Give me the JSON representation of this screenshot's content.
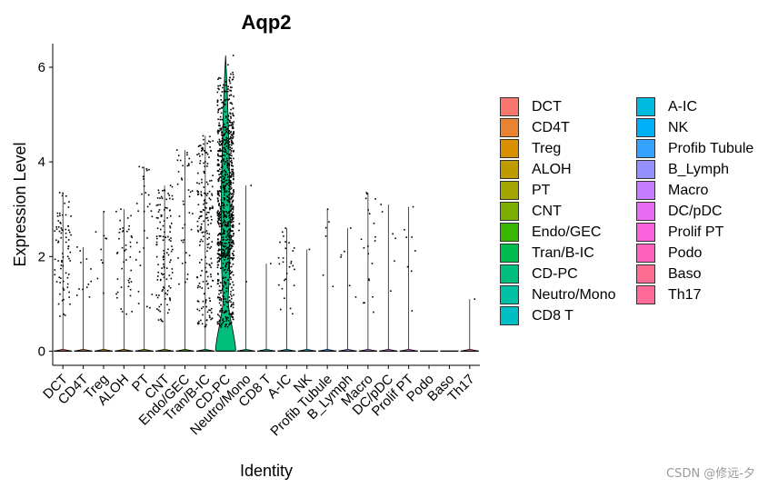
{
  "chart_data": {
    "type": "violin",
    "title": "Aqp2",
    "xlabel": "Identity",
    "ylabel": "Expression Level",
    "ylim": [
      -0.3,
      6.5
    ],
    "yticks": [
      0,
      2,
      4,
      6
    ],
    "categories": [
      "DCT",
      "CD4T",
      "Treg",
      "ALOH",
      "PT",
      "CNT",
      "Endo/GEC",
      "Tran/B-IC",
      "CD-PC",
      "Neutro/Mono",
      "CD8 T",
      "A-IC",
      "NK",
      "Profib Tubule",
      "B_Lymph",
      "Macro",
      "DC/pDC",
      "Prolif PT",
      "Podo",
      "Baso",
      "Th17"
    ],
    "colors": [
      "#F8766D",
      "#EA8331",
      "#D89000",
      "#C09B00",
      "#A3A500",
      "#7CAE00",
      "#39B600",
      "#00BB4E",
      "#00BF7D",
      "#00C1A3",
      "#00BFC4",
      "#00BAE0",
      "#00B0F6",
      "#35A2FF",
      "#9590FF",
      "#C77CFF",
      "#E76BF3",
      "#FA62DB",
      "#FF62BC",
      "#FF6C91",
      "#FF6A98"
    ],
    "max_values": [
      3.35,
      2.2,
      2.95,
      3.0,
      3.9,
      3.5,
      4.25,
      4.55,
      6.25,
      3.5,
      1.85,
      2.6,
      2.15,
      3.0,
      2.6,
      3.35,
      3.1,
      3.05,
      0,
      0,
      1.1
    ],
    "point_counts": [
      80,
      12,
      10,
      45,
      30,
      120,
      40,
      200,
      900,
      4,
      1,
      28,
      1,
      6,
      6,
      20,
      6,
      8,
      0,
      0,
      1
    ],
    "point_min": [
      0.7,
      1.0,
      0.9,
      0.7,
      0.8,
      0.6,
      1.1,
      0.5,
      0.5,
      1.2,
      1.85,
      0.7,
      2.15,
      1.0,
      1.0,
      0.8,
      0.7,
      0.7,
      0,
      0,
      1.1
    ],
    "legend": {
      "placement": "right",
      "columns": 2,
      "rows_per_column": 11
    }
  },
  "watermark": "CSDN @修远-夕"
}
